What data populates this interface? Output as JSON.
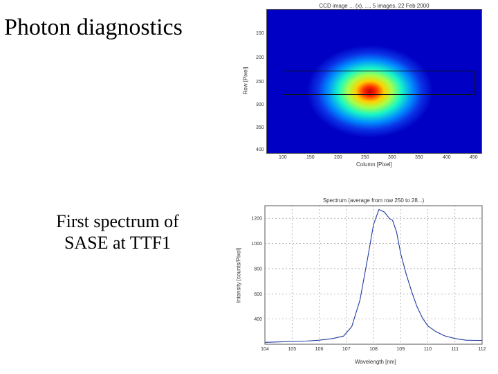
{
  "slide": {
    "title": "Photon diagnostics",
    "caption_line1": "First spectrum of",
    "caption_line2": "SASE at TTF1"
  },
  "ccd_image": {
    "title": "CCD image ... (x), ..., 5 images, 22 Feb 2000",
    "xlabel": "Column [Pixel]",
    "ylabel": "Row [Pixel]",
    "x_ticks": [
      "100",
      "150",
      "200",
      "250",
      "300",
      "350",
      "400",
      "450"
    ],
    "y_ticks": [
      "150",
      "200",
      "250",
      "300",
      "350",
      "400"
    ],
    "colormap": [
      "#0000c4",
      "#008cff",
      "#18f7c6",
      "#a6ff4a",
      "#ffd000",
      "#ff2a00",
      "#c00000"
    ]
  },
  "chart_data": {
    "type": "line",
    "title": "Spectrum (average from row 250 to 28...)",
    "xlabel": "Wavelength [nm]",
    "ylabel": "Intensity [counts/Pixel]",
    "xlim": [
      104,
      112
    ],
    "ylim": [
      200,
      1300
    ],
    "x_ticks": [
      104,
      105,
      106,
      107,
      108,
      109,
      110,
      111,
      112
    ],
    "y_ticks": [
      400,
      600,
      800,
      1000,
      1200
    ],
    "x_tick_labels": [
      "104",
      "105",
      "106",
      "107",
      "108",
      "109",
      "110",
      "111",
      "112"
    ],
    "y_tick_labels": [
      "400",
      "600",
      "800",
      "1000",
      "1200"
    ],
    "grid": true,
    "line_color": "#1f3a9e",
    "series": [
      {
        "x": [
          104.0,
          104.5,
          105.0,
          105.5,
          106.0,
          106.5,
          106.9,
          107.2,
          107.5,
          107.8,
          108.0,
          108.2,
          108.4,
          108.6,
          108.7,
          108.85,
          109.0,
          109.2,
          109.4,
          109.6,
          109.8,
          110.0,
          110.3,
          110.6,
          111.0,
          111.4,
          111.8,
          112.0
        ],
        "y": [
          215,
          218,
          222,
          225,
          232,
          245,
          265,
          340,
          550,
          900,
          1150,
          1270,
          1250,
          1195,
          1185,
          1090,
          920,
          760,
          620,
          500,
          410,
          345,
          300,
          268,
          245,
          232,
          230,
          230
        ]
      }
    ]
  }
}
